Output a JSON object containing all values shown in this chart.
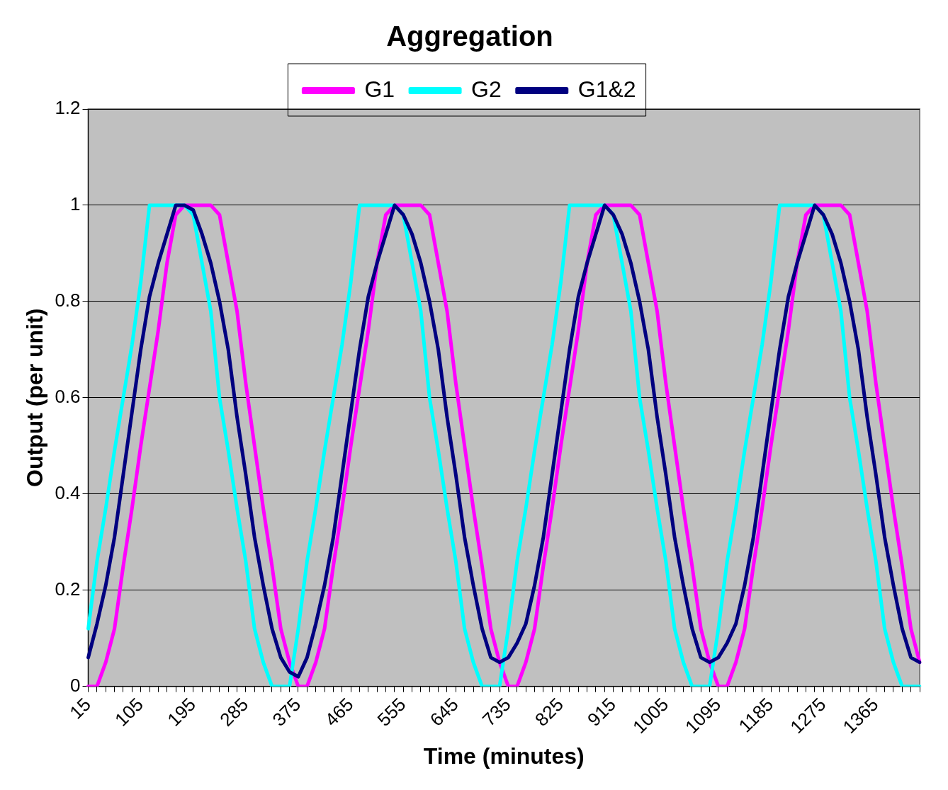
{
  "chart_data": {
    "type": "line",
    "title": "Aggregation",
    "xlabel": "Time (minutes)",
    "ylabel": "Output (per unit)",
    "categories": [
      "15",
      null,
      null,
      null,
      null,
      null,
      "105",
      null,
      null,
      null,
      null,
      null,
      "195",
      null,
      null,
      null,
      null,
      null,
      "285",
      null,
      null,
      null,
      null,
      null,
      "375",
      null,
      null,
      null,
      null,
      null,
      "465",
      null,
      null,
      null,
      null,
      null,
      "555",
      null,
      null,
      null,
      null,
      null,
      "645",
      null,
      null,
      null,
      null,
      null,
      "735",
      null,
      null,
      null,
      null,
      null,
      "825",
      null,
      null,
      null,
      null,
      null,
      "915",
      null,
      null,
      null,
      null,
      null,
      "1005",
      null,
      null,
      null,
      null,
      null,
      "1095",
      null,
      null,
      null,
      null,
      null,
      "1185",
      null,
      null,
      null,
      null,
      null,
      "1275",
      null,
      null,
      null,
      null,
      null,
      "1365",
      null,
      null,
      null,
      null,
      null
    ],
    "series": [
      {
        "name": "G1",
        "color": "#ff00ff",
        "values": [
          0,
          0,
          0.05,
          0.12,
          0.25,
          0.37,
          0.5,
          0.62,
          0.74,
          0.88,
          0.98,
          1,
          1,
          1,
          1,
          0.98,
          0.88,
          0.78,
          0.63,
          0.5,
          0.37,
          0.25,
          0.12,
          0.05,
          0,
          0,
          0.05,
          0.12,
          0.25,
          0.37,
          0.5,
          0.62,
          0.74,
          0.88,
          0.98,
          1,
          1,
          1,
          1,
          0.98,
          0.88,
          0.78,
          0.63,
          0.5,
          0.37,
          0.25,
          0.12,
          0.05,
          0,
          0,
          0.05,
          0.12,
          0.25,
          0.37,
          0.5,
          0.62,
          0.74,
          0.88,
          0.98,
          1,
          1,
          1,
          1,
          0.98,
          0.88,
          0.78,
          0.63,
          0.5,
          0.37,
          0.25,
          0.12,
          0.05,
          0,
          0,
          0.05,
          0.12,
          0.25,
          0.37,
          0.5,
          0.62,
          0.74,
          0.88,
          0.98,
          1,
          1,
          1,
          1,
          0.98,
          0.88,
          0.78,
          0.63,
          0.5,
          0.37,
          0.25,
          0.12,
          0.05
        ]
      },
      {
        "name": "G2",
        "color": "#00ffff",
        "values": [
          0.12,
          0.26,
          0.37,
          0.49,
          0.6,
          0.71,
          0.84,
          1,
          1,
          1,
          1,
          1,
          0.98,
          0.88,
          0.78,
          0.6,
          0.49,
          0.37,
          0.26,
          0.12,
          0.05,
          0,
          0,
          0,
          0.12,
          0.26,
          0.37,
          0.49,
          0.6,
          0.71,
          0.84,
          1,
          1,
          1,
          1,
          1,
          0.98,
          0.88,
          0.78,
          0.6,
          0.49,
          0.37,
          0.26,
          0.12,
          0.05,
          0,
          0,
          0,
          0.12,
          0.26,
          0.37,
          0.49,
          0.6,
          0.71,
          0.84,
          1,
          1,
          1,
          1,
          1,
          0.98,
          0.88,
          0.78,
          0.6,
          0.49,
          0.37,
          0.26,
          0.12,
          0.05,
          0,
          0,
          0,
          0.12,
          0.26,
          0.37,
          0.49,
          0.6,
          0.71,
          0.84,
          1,
          1,
          1,
          1,
          1,
          0.98,
          0.88,
          0.78,
          0.6,
          0.49,
          0.37,
          0.26,
          0.12,
          0.05,
          0,
          0,
          0
        ]
      },
      {
        "name": "G1&2",
        "color": "#000080",
        "values": [
          0.06,
          0.13,
          0.21,
          0.31,
          0.44,
          0.57,
          0.7,
          0.81,
          0.88,
          0.94,
          1,
          1,
          0.99,
          0.94,
          0.88,
          0.8,
          0.7,
          0.56,
          0.44,
          0.31,
          0.21,
          0.12,
          0.06,
          0.03,
          0.02,
          0.06,
          0.13,
          0.21,
          0.31,
          0.44,
          0.57,
          0.7,
          0.81,
          0.88,
          0.94,
          1,
          0.98,
          0.94,
          0.88,
          0.8,
          0.7,
          0.56,
          0.44,
          0.31,
          0.21,
          0.12,
          0.06,
          0.05,
          0.06,
          0.09,
          0.13,
          0.21,
          0.31,
          0.44,
          0.57,
          0.7,
          0.81,
          0.88,
          0.94,
          1,
          0.98,
          0.94,
          0.88,
          0.8,
          0.7,
          0.56,
          0.44,
          0.31,
          0.21,
          0.12,
          0.06,
          0.05,
          0.06,
          0.09,
          0.13,
          0.21,
          0.31,
          0.44,
          0.57,
          0.7,
          0.81,
          0.88,
          0.94,
          1,
          0.98,
          0.94,
          0.88,
          0.8,
          0.7,
          0.56,
          0.44,
          0.31,
          0.21,
          0.12,
          0.06,
          0.05
        ]
      }
    ],
    "ylim": [
      0,
      1.2
    ],
    "yticks": [
      0,
      0.2,
      0.4,
      0.6,
      0.8,
      1,
      1.2
    ],
    "grid": "y",
    "legend": "top",
    "marker": "none",
    "line_style": "solid"
  }
}
